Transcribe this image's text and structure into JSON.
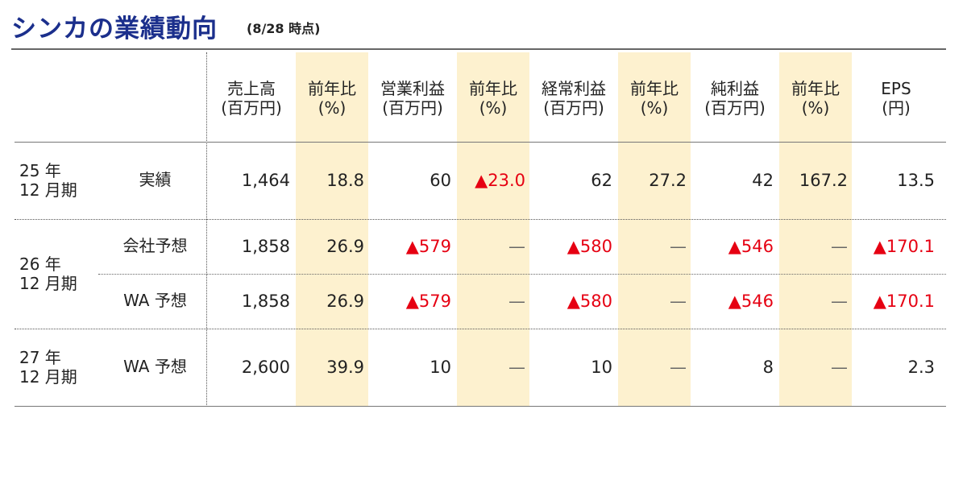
{
  "header": {
    "title": "シンカの業績動向",
    "note": "(8/28 時点)"
  },
  "table": {
    "band_color": "#fdf1cf",
    "columns": [
      [
        "売上高",
        "(百万円)"
      ],
      [
        "前年比",
        "(%)"
      ],
      [
        "営業利益",
        "(百万円)"
      ],
      [
        "前年比",
        "(%)"
      ],
      [
        "経常利益",
        "(百万円)"
      ],
      [
        "前年比",
        "(%)"
      ],
      [
        "純利益",
        "(百万円)"
      ],
      [
        "前年比",
        "(%)"
      ],
      [
        "EPS",
        "(円)"
      ]
    ],
    "groups": [
      {
        "period": [
          "25 年",
          "12 月期"
        ],
        "rows": [
          {
            "label": "実績",
            "cells": [
              "1,464",
              "18.8",
              "60",
              {
                "text": "▲23.0",
                "color": "#e60012"
              },
              "62",
              "27.2",
              "42",
              "167.2",
              "13.5"
            ]
          }
        ]
      },
      {
        "period": [
          "26 年",
          "12 月期"
        ],
        "rows": [
          {
            "label": "会社予想",
            "cells": [
              "1,858",
              "26.9",
              {
                "text": "▲579",
                "color": "#e60012"
              },
              "—",
              {
                "text": "▲580",
                "color": "#e60012"
              },
              "—",
              {
                "text": "▲546",
                "color": "#e60012"
              },
              "—",
              {
                "text": "▲170.1",
                "color": "#e60012"
              }
            ]
          },
          {
            "label": "WA 予想",
            "cells": [
              "1,858",
              "26.9",
              {
                "text": "▲579",
                "color": "#e60012"
              },
              "—",
              {
                "text": "▲580",
                "color": "#e60012"
              },
              "—",
              {
                "text": "▲546",
                "color": "#e60012"
              },
              "—",
              {
                "text": "▲170.1",
                "color": "#e60012"
              }
            ]
          }
        ]
      },
      {
        "period": [
          "27 年",
          "12 月期"
        ],
        "rows": [
          {
            "label": "WA 予想",
            "cells": [
              "2,600",
              "39.9",
              "10",
              "—",
              "10",
              "—",
              "8",
              "—",
              "2.3"
            ]
          }
        ]
      }
    ]
  }
}
